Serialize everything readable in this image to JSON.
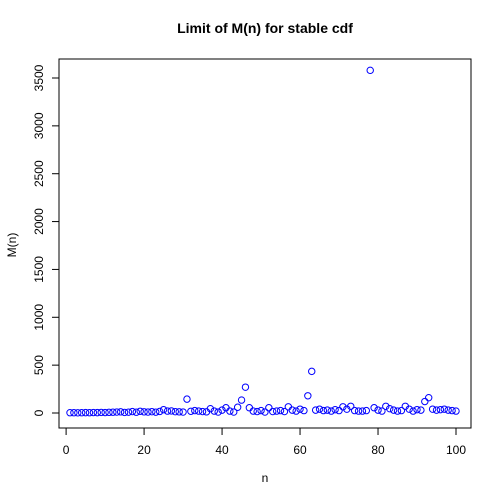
{
  "chart_data": {
    "type": "scatter",
    "title": "Limit of M(n) for stable cdf",
    "xlabel": "n",
    "ylabel": "M(n)",
    "xlim": [
      1,
      100
    ],
    "ylim": [
      0,
      3580
    ],
    "x_ticks": [
      0,
      20,
      40,
      60,
      80,
      100
    ],
    "y_ticks": [
      0,
      500,
      1000,
      1500,
      2000,
      2500,
      3000,
      3500
    ],
    "marker": "open-circle",
    "point_color": "#0000ff",
    "grid": false,
    "legend": "none",
    "series": [
      {
        "x": [
          1,
          2,
          3,
          4,
          5,
          6,
          7,
          8,
          9,
          10,
          11,
          12,
          13,
          14,
          15,
          16,
          17,
          18,
          19,
          20,
          21,
          22,
          23,
          24,
          25,
          26,
          27,
          28,
          29,
          30,
          31,
          32,
          33,
          34,
          35,
          36,
          37,
          38,
          39,
          40,
          41,
          42,
          43,
          44,
          45,
          46,
          47,
          48,
          49,
          50,
          51,
          52,
          53,
          54,
          55,
          56,
          57,
          58,
          59,
          60,
          61,
          62,
          63,
          64,
          65,
          66,
          67,
          68,
          69,
          70,
          71,
          72,
          73,
          74,
          75,
          76,
          77,
          78,
          79,
          80,
          81,
          82,
          83,
          84,
          85,
          86,
          87,
          88,
          89,
          90,
          91,
          92,
          93,
          94,
          95,
          96,
          97,
          98,
          99,
          100
        ],
        "values": [
          3,
          3,
          2,
          3,
          4,
          3,
          5,
          4,
          6,
          5,
          7,
          8,
          10,
          12,
          6,
          9,
          15,
          8,
          18,
          12,
          10,
          14,
          9,
          16,
          35,
          20,
          22,
          14,
          12,
          10,
          145,
          18,
          25,
          20,
          15,
          12,
          45,
          20,
          10,
          30,
          55,
          20,
          10,
          60,
          135,
          270,
          55,
          20,
          15,
          25,
          10,
          55,
          15,
          20,
          25,
          15,
          65,
          30,
          20,
          40,
          25,
          180,
          435,
          30,
          40,
          25,
          30,
          20,
          35,
          25,
          65,
          40,
          70,
          25,
          20,
          20,
          25,
          3580,
          55,
          30,
          20,
          70,
          45,
          30,
          20,
          25,
          70,
          40,
          20,
          35,
          30,
          120,
          160,
          40,
          30,
          35,
          40,
          30,
          25,
          20
        ]
      }
    ]
  }
}
